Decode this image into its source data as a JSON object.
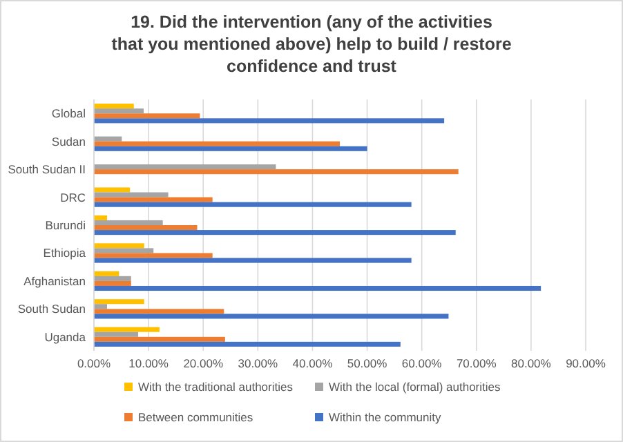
{
  "chart_data": {
    "type": "bar",
    "orientation": "horizontal",
    "title": "19. Did the intervention (any of the  activities that you mentioned above) help to build / restore confidence and trust",
    "categories": [
      "Global",
      "Sudan",
      "South Sudan II",
      "DRC",
      "Burundi",
      "Ethiopia",
      "Afghanistan",
      "South Sudan",
      "Uganda"
    ],
    "series": [
      {
        "name": "With the traditional authorities",
        "color": "#ffc000",
        "values": [
          7.3,
          0,
          0,
          6.6,
          2.4,
          9.2,
          4.6,
          9.2,
          12.0
        ]
      },
      {
        "name": "With the local (formal) authorities",
        "color": "#a5a5a5",
        "values": [
          9.1,
          5.1,
          33.3,
          13.6,
          12.6,
          10.9,
          6.8,
          2.4,
          8.1
        ]
      },
      {
        "name": "Between  communities",
        "color": "#ed7d31",
        "values": [
          19.4,
          45.0,
          66.7,
          21.7,
          18.9,
          21.7,
          6.8,
          23.8,
          24.0
        ]
      },
      {
        "name": "Within the community",
        "color": "#4472c4",
        "values": [
          64.1,
          50.0,
          0,
          58.1,
          66.2,
          58.1,
          81.8,
          64.9,
          56.1
        ]
      }
    ],
    "xlim": [
      0,
      90
    ],
    "xticks": [
      {
        "value": 0,
        "label": "0.00%"
      },
      {
        "value": 10,
        "label": "10.00%"
      },
      {
        "value": 20,
        "label": "20.00%"
      },
      {
        "value": 30,
        "label": "30.00%"
      },
      {
        "value": 40,
        "label": "40.00%"
      },
      {
        "value": 50,
        "label": "50.00%"
      },
      {
        "value": 60,
        "label": "60.00%"
      },
      {
        "value": 70,
        "label": "70.00%"
      },
      {
        "value": 80,
        "label": "80.00%"
      },
      {
        "value": 90,
        "label": "90.00%"
      }
    ],
    "grid": "x",
    "legend": "bottom"
  }
}
